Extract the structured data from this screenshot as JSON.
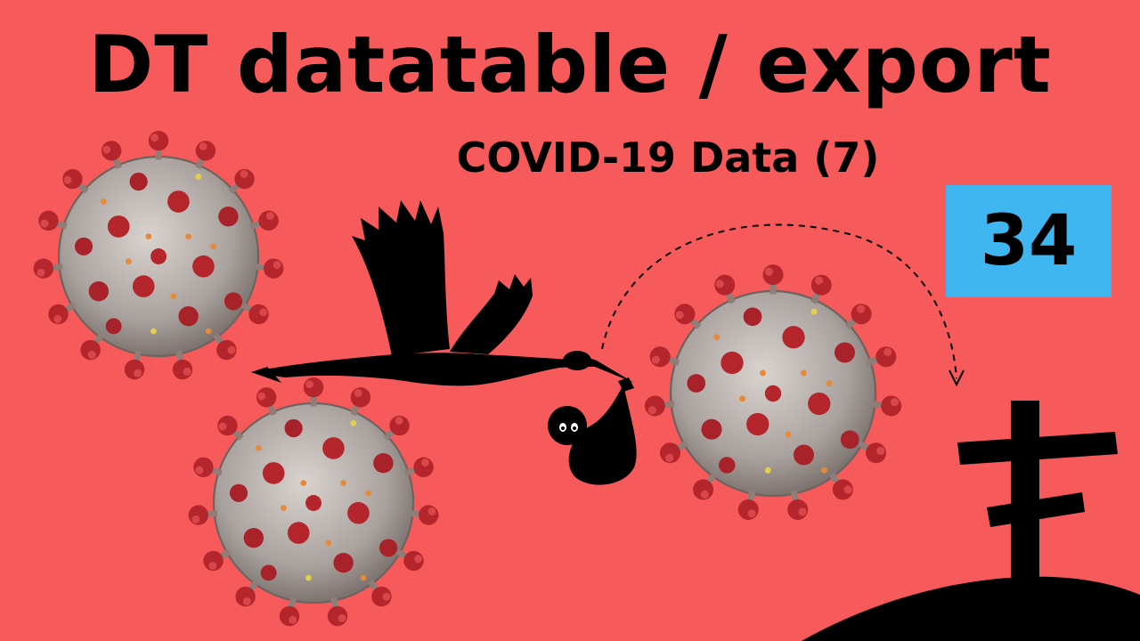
{
  "thumbnail": {
    "title": "DT datatable / export",
    "subtitle": "COVID-19 Data (7)",
    "episode_number": "34",
    "colors": {
      "background": "#f65a5a",
      "badge": "#3fb6f0",
      "virus_body": "#b9b2ae",
      "virus_spike": "#b4262b",
      "silhouette": "#000000"
    },
    "icons": [
      "coronavirus-icon",
      "stork-icon",
      "baby-bundle-icon",
      "grave-cross-icon"
    ]
  }
}
